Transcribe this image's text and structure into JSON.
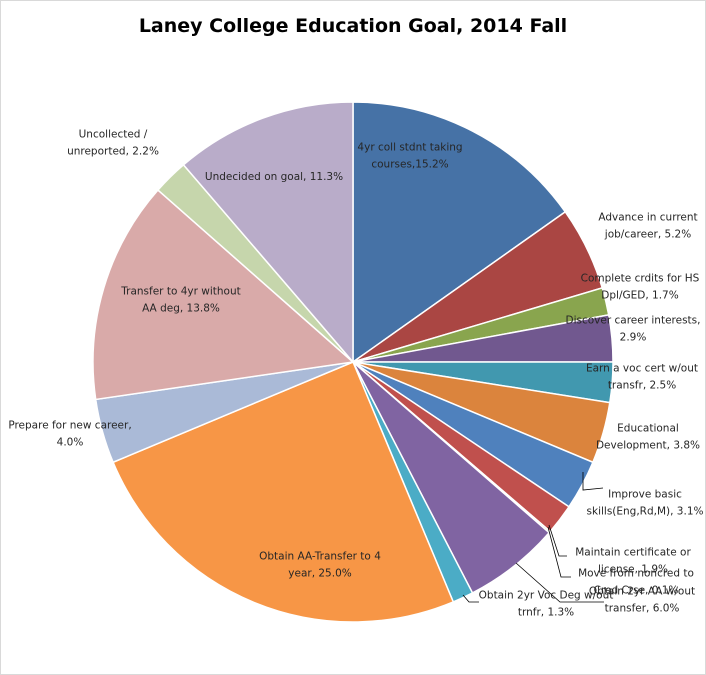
{
  "chart_data": {
    "type": "pie",
    "title": "Laney College Education Goal, 2014 Fall",
    "slices": [
      {
        "label": "4yr coll stdnt taking courses",
        "value": 15.2,
        "text": [
          "4yr coll stdnt taking",
          "courses,15.2%"
        ],
        "color": "#4672a6"
      },
      {
        "label": "Advance in current job/career",
        "value": 5.2,
        "text": [
          "Advance in current",
          "job/career, 5.2%"
        ],
        "color": "#aa4643"
      },
      {
        "label": "Complete crdits for HS Dpl/GED",
        "value": 1.7,
        "text": [
          "Complete crdits for HS",
          "Dpl/GED, 1.7%"
        ],
        "color": "#89a54e"
      },
      {
        "label": "Discover career interests",
        "value": 2.9,
        "text": [
          "Discover career interests,",
          "2.9%"
        ],
        "color": "#71588f"
      },
      {
        "label": "Earn a voc cert w/out transfr",
        "value": 2.5,
        "text": [
          "Earn a voc cert w/out",
          "transfr, 2.5%"
        ],
        "color": "#4198af"
      },
      {
        "label": "Educational Development",
        "value": 3.8,
        "text": [
          "Educational",
          "Development,  3.8%"
        ],
        "color": "#db843d"
      },
      {
        "label": "Improve basic skills(Eng,Rd,M)",
        "value": 3.1,
        "text": [
          "Improve basic",
          "skills(Eng,Rd,M), 3.1%"
        ],
        "color": "#4f81bd"
      },
      {
        "label": "Maintain certificate or license",
        "value": 1.9,
        "text": [
          "Maintain certificate or",
          "license, 1.9%"
        ],
        "color": "#c0504d"
      },
      {
        "label": "Move from noncred to Cred Crse",
        "value": 0.1,
        "text": [
          "Move from noncred to",
          "Cred Crse, 0.1%"
        ],
        "color": "#9bbb59"
      },
      {
        "label": "Obtain 2yr AA w/out transfer",
        "value": 6.0,
        "text": [
          "Obtain 2yr AA w/out",
          "transfer, 6.0%"
        ],
        "color": "#8064a2"
      },
      {
        "label": "Obtain 2yr Voc Deg w/out trnfr",
        "value": 1.3,
        "text": [
          "Obtain 2yr Voc Deg w/out",
          "trnfr, 1.3%"
        ],
        "color": "#4bacc6"
      },
      {
        "label": "Obtain AA-Transfer to 4 year",
        "value": 25.0,
        "text": [
          "Obtain AA-Transfer to 4",
          "year, 25.0%"
        ],
        "color": "#f79646"
      },
      {
        "label": "Prepare for new career",
        "value": 4.0,
        "text": [
          "Prepare for new career,",
          "4.0%"
        ],
        "color": "#aabad7"
      },
      {
        "label": "Transfer to 4yr without AA deg",
        "value": 13.8,
        "text": [
          "Transfer to 4yr without",
          "AA deg, 13.8%"
        ],
        "color": "#d9aaa9"
      },
      {
        "label": "Uncollected / unreported",
        "value": 2.2,
        "text": [
          "Uncollected /",
          "unreported,  2.2%"
        ],
        "color": "#c6d6ac"
      },
      {
        "label": "Undecided on goal",
        "value": 11.3,
        "text": [
          "Undecided on goal, 11.3%"
        ],
        "color": "#b9acc9"
      }
    ]
  }
}
